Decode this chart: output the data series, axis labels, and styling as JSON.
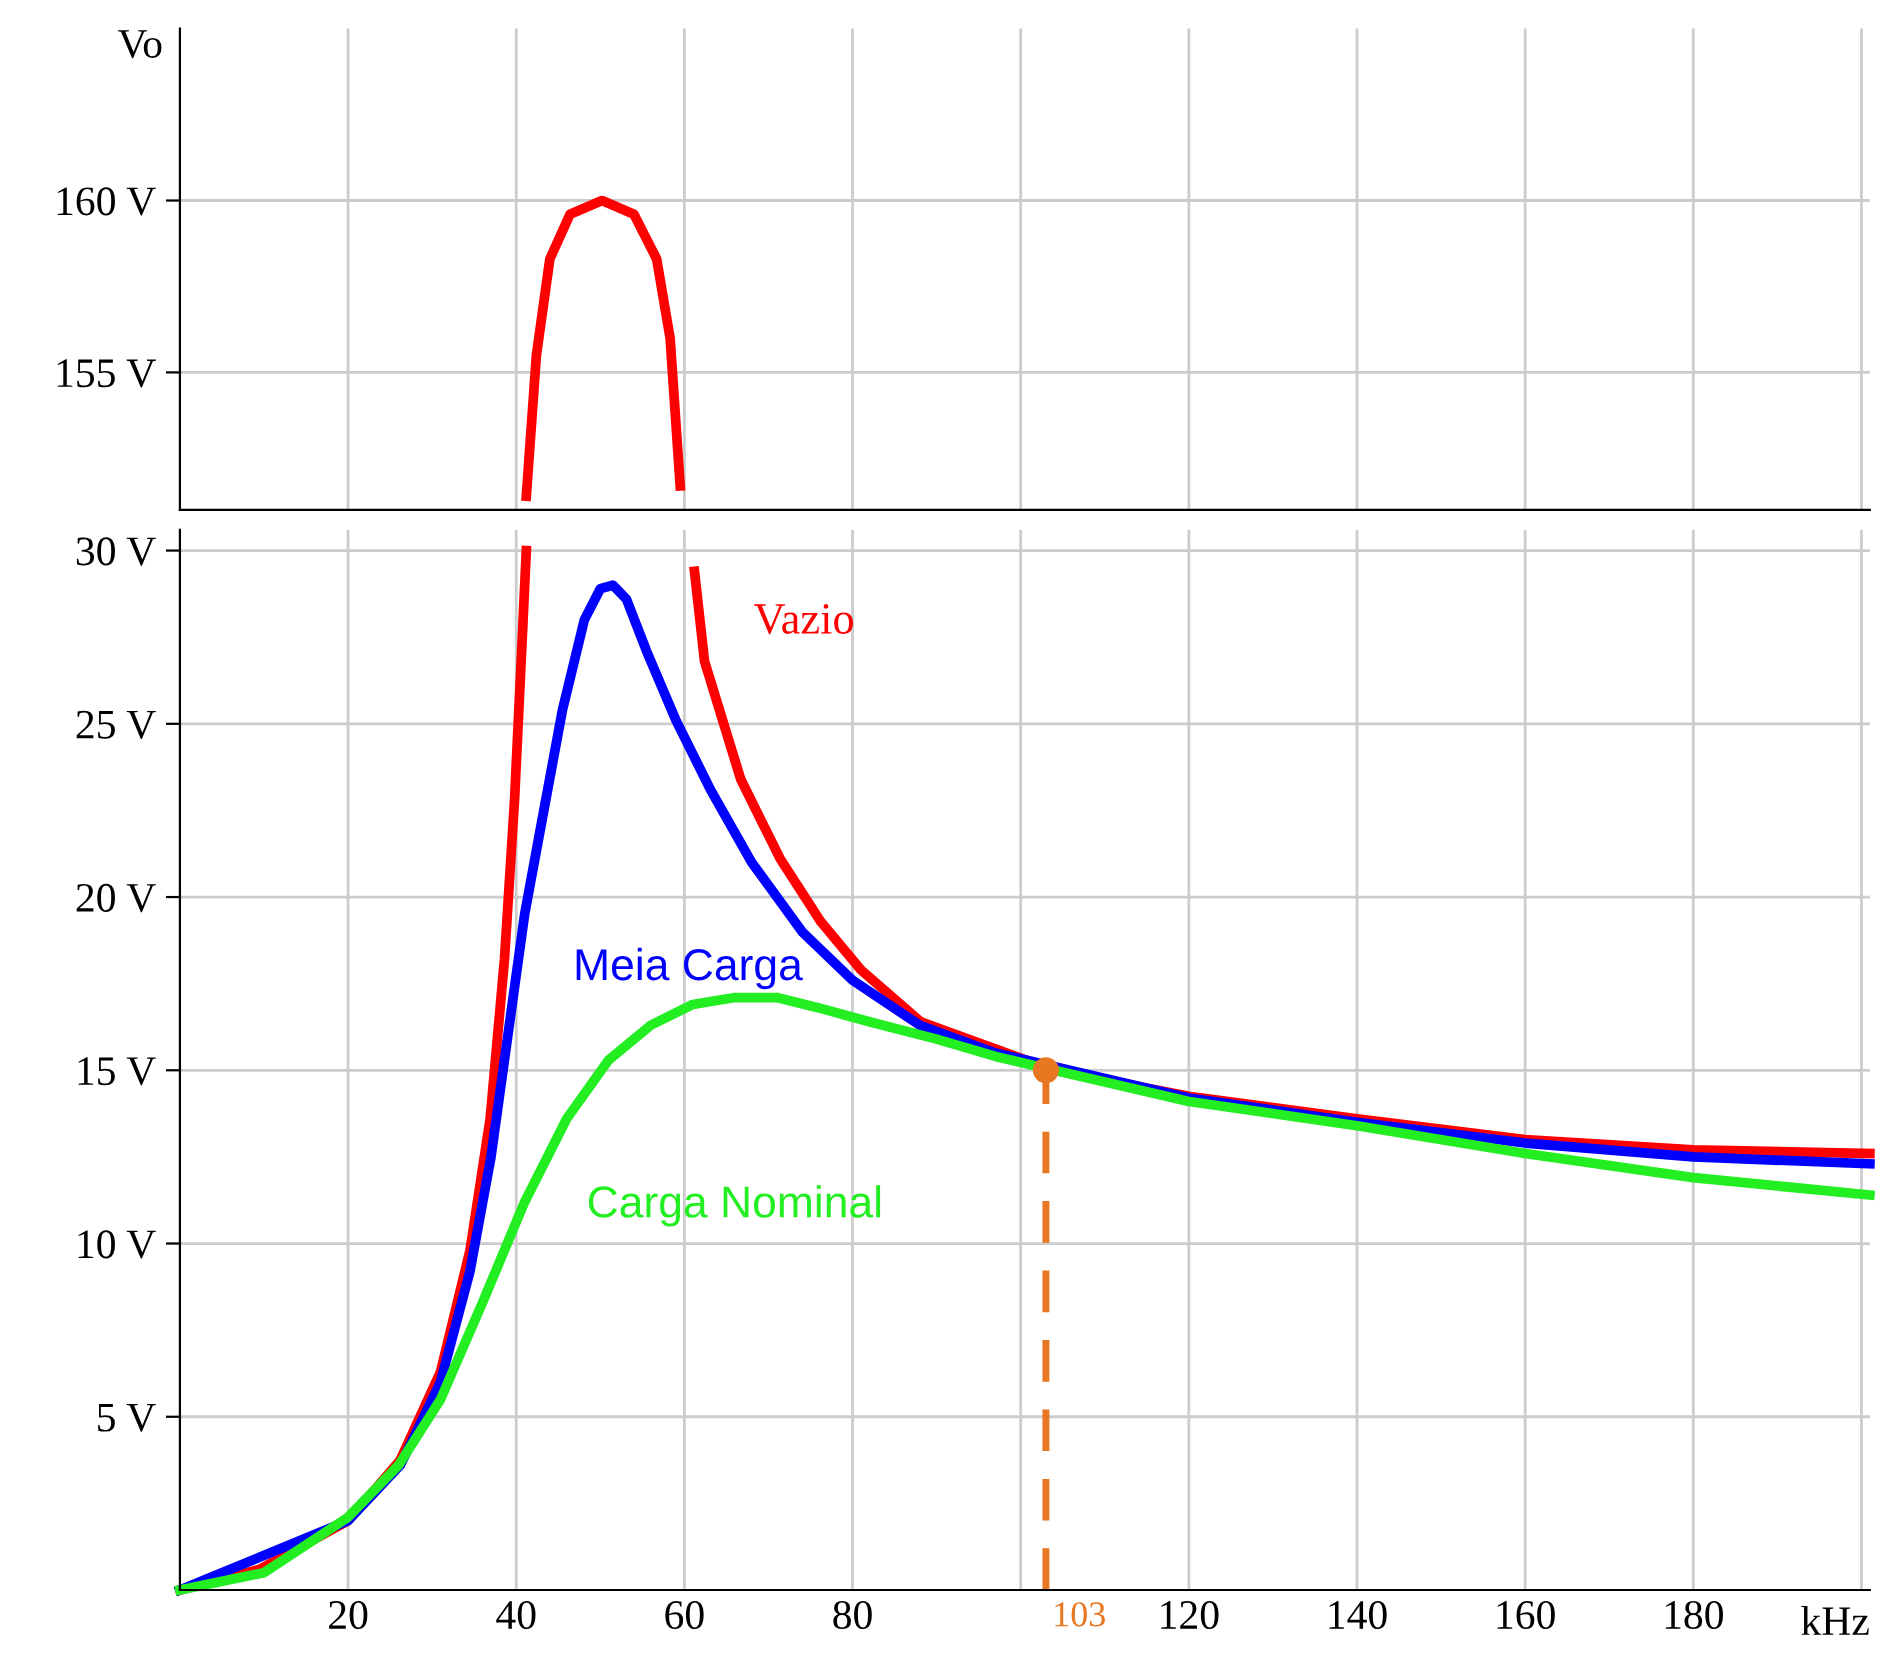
{
  "chart_data": [
    {
      "type": "line",
      "ylabel": "Vo",
      "xlim": [
        0,
        201
      ],
      "ylim": [
        151,
        165
      ],
      "xticks": [
        {
          "value": 20,
          "label": null
        },
        {
          "value": 40,
          "label": null
        },
        {
          "value": 60,
          "label": null
        },
        {
          "value": 80,
          "label": null
        },
        {
          "value": 100,
          "label": null
        },
        {
          "value": 120,
          "label": null
        },
        {
          "value": 140,
          "label": null
        },
        {
          "value": 160,
          "label": null
        },
        {
          "value": 180,
          "label": null
        },
        {
          "value": 200,
          "label": null
        }
      ],
      "yticks": [
        {
          "value": 155,
          "label": "155 V"
        },
        {
          "value": 160,
          "label": "160 V"
        }
      ],
      "tick_labels": "y",
      "grid": true,
      "legend": false,
      "series": [
        {
          "color": "#ff0000",
          "x": [
            41.2,
            42.4,
            44,
            46.4,
            50.2,
            54,
            56.7,
            58.3,
            59.5
          ],
          "values": [
            151.4,
            155.5,
            158.3,
            159.6,
            160,
            159.6,
            158.3,
            156,
            151.7
          ]
        }
      ]
    },
    {
      "type": "line",
      "xlabel": "kHz",
      "xlim": [
        0,
        201
      ],
      "ylim": [
        0,
        30.6
      ],
      "xticks": [
        20,
        40,
        60,
        80,
        {
          "value": 100,
          "label": null
        },
        120,
        140,
        160,
        180,
        {
          "value": 200,
          "label": null
        }
      ],
      "yticks": [
        {
          "value": 5,
          "label": "5 V"
        },
        {
          "value": 10,
          "label": "10 V"
        },
        {
          "value": 15,
          "label": "15 V"
        },
        {
          "value": 20,
          "label": "20 V"
        },
        {
          "value": 25,
          "label": "25 V"
        },
        {
          "value": 30,
          "label": "30 V"
        }
      ],
      "grid": true,
      "legend": false,
      "annotations": [
        {
          "text": "103",
          "x": 103,
          "y": 0
        }
      ],
      "series": [
        {
          "name": "Vazio",
          "color": "#ff0000",
          "x": [
            0,
            9.5,
            20,
            26.2,
            31,
            34.5,
            36.9,
            38.6,
            39.8,
            40.7,
            41.2,
            50,
            61.2,
            62.4,
            66.7,
            71.4,
            76.2,
            81,
            88.1,
            104,
            120,
            140,
            160,
            180,
            201
          ],
          "values": [
            0,
            0.6,
            2,
            3.75,
            6.3,
            9.8,
            13.6,
            18.2,
            22.8,
            27.4,
            30,
            null,
            29.4,
            26.8,
            23.4,
            21.1,
            19.3,
            17.9,
            16.4,
            15,
            14.25,
            13.6,
            13,
            12.7,
            12.6
          ]
        },
        {
          "name": "Meia Carga",
          "color": "#0000ff",
          "x": [
            0,
            20,
            26.2,
            31,
            34.5,
            37,
            39,
            41,
            42.9,
            45.5,
            48.1,
            50,
            51.5,
            53.1,
            55.5,
            59,
            63.1,
            68,
            74,
            80,
            88,
            97,
            120,
            140,
            160,
            180,
            201
          ],
          "values": [
            0,
            2,
            3.6,
            6,
            9.2,
            12.5,
            16,
            19.5,
            22,
            25.4,
            28,
            28.9,
            29,
            28.6,
            27.1,
            25.1,
            23.1,
            21,
            19,
            17.6,
            16.3,
            15.5,
            14.2,
            13.5,
            12.9,
            12.5,
            12.3
          ]
        },
        {
          "name": "Carga Nominal",
          "color": "#22ee22",
          "x": [
            0,
            10,
            20,
            26,
            31,
            36,
            41,
            46,
            51,
            56,
            61,
            66,
            71,
            76,
            82,
            90,
            97,
            104,
            120,
            140,
            160,
            180,
            201
          ],
          "values": [
            0,
            0.5,
            2.1,
            3.6,
            5.5,
            8.3,
            11.2,
            13.6,
            15.3,
            16.3,
            16.9,
            17.1,
            17.1,
            16.8,
            16.4,
            15.9,
            15.4,
            15,
            14.1,
            13.4,
            12.6,
            11.9,
            11.4
          ]
        },
        {
          "color": "#e87722",
          "line_style": "dashed",
          "x": [
            103,
            103
          ],
          "values": [
            0,
            15
          ]
        },
        {
          "type": "scatter",
          "color": "#e87722",
          "marker": "circle",
          "x": [
            103
          ],
          "values": [
            15
          ]
        }
      ]
    }
  ]
}
